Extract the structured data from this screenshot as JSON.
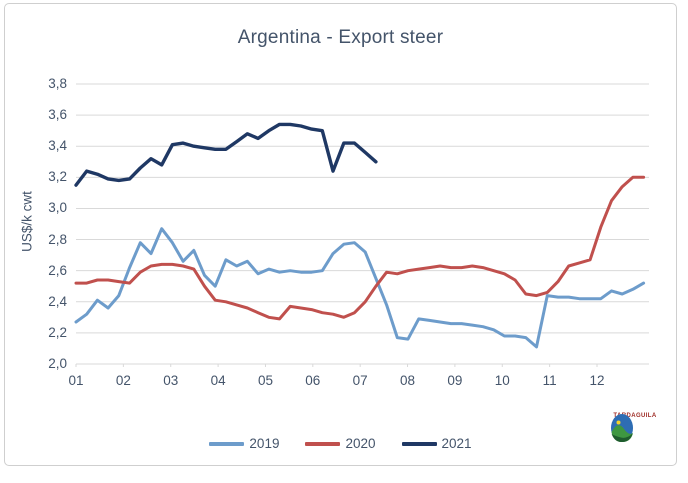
{
  "chart_data": {
    "type": "line",
    "title": "Argentina - Export steer",
    "xlabel": "",
    "ylabel": "US$/k cwt",
    "ylim": [
      2.0,
      3.8
    ],
    "grid": "horizontal",
    "legend_position": "bottom",
    "x_unit": "month (weekly data points)",
    "x_tick_labels": [
      "01",
      "02",
      "03",
      "04",
      "05",
      "06",
      "07",
      "08",
      "09",
      "10",
      "11",
      "12"
    ],
    "y_tick_labels": [
      "3,8",
      "3,6",
      "3,4",
      "3,2",
      "3,0",
      "2,8",
      "2,6",
      "2,4",
      "2,2",
      "2,0"
    ],
    "series": [
      {
        "name": "2019",
        "color": "#6d9ccb",
        "values": [
          2.27,
          2.32,
          2.41,
          2.36,
          2.44,
          2.62,
          2.78,
          2.71,
          2.87,
          2.78,
          2.66,
          2.73,
          2.57,
          2.5,
          2.67,
          2.63,
          2.66,
          2.58,
          2.61,
          2.59,
          2.6,
          2.59,
          2.59,
          2.6,
          2.71,
          2.77,
          2.78,
          2.72,
          2.55,
          2.38,
          2.17,
          2.16,
          2.29,
          2.28,
          2.27,
          2.26,
          2.26,
          2.25,
          2.24,
          2.22,
          2.18,
          2.18,
          2.17,
          2.11,
          2.44,
          2.43,
          2.43,
          2.42,
          2.42,
          2.42,
          2.47,
          2.45,
          2.48,
          2.52
        ]
      },
      {
        "name": "2020",
        "color": "#c0504d",
        "values": [
          2.52,
          2.52,
          2.54,
          2.54,
          2.53,
          2.52,
          2.59,
          2.63,
          2.64,
          2.64,
          2.63,
          2.61,
          2.5,
          2.41,
          2.4,
          2.38,
          2.36,
          2.33,
          2.3,
          2.29,
          2.37,
          2.36,
          2.35,
          2.33,
          2.32,
          2.3,
          2.33,
          2.4,
          2.5,
          2.59,
          2.58,
          2.6,
          2.61,
          2.62,
          2.63,
          2.62,
          2.62,
          2.63,
          2.62,
          2.6,
          2.58,
          2.54,
          2.45,
          2.44,
          2.46,
          2.53,
          2.63,
          2.65,
          2.67,
          2.88,
          3.05,
          3.14,
          3.2,
          3.2
        ]
      },
      {
        "name": "2021",
        "color": "#1f3864",
        "values": [
          3.15,
          3.24,
          3.22,
          3.19,
          3.18,
          3.19,
          3.26,
          3.32,
          3.28,
          3.41,
          3.42,
          3.4,
          3.39,
          3.38,
          3.38,
          3.43,
          3.48,
          3.45,
          3.5,
          3.54,
          3.54,
          3.53,
          3.51,
          3.5,
          3.24,
          3.42,
          3.42,
          3.36,
          3.3
        ]
      }
    ]
  },
  "branding": {
    "logo_text": "TARDAGUILA"
  }
}
